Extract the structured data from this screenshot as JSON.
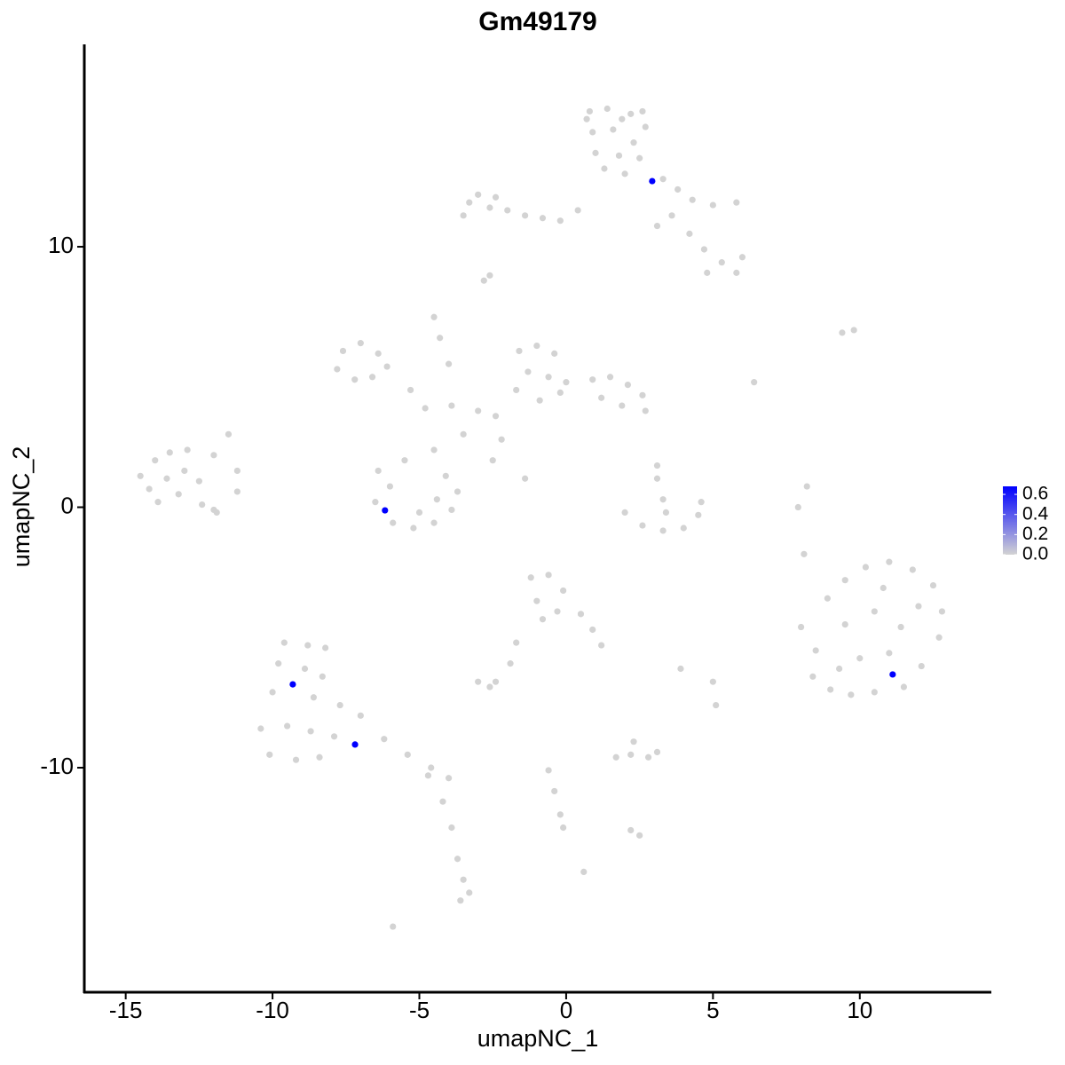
{
  "chart_data": {
    "type": "scatter",
    "title": "Gm49179",
    "x_label": "umapNC_1",
    "y_label": "umapNC_2",
    "xlim": [
      -16.41,
      14.48
    ],
    "ylim": [
      -18.62,
      17.77
    ],
    "xticks": [
      -15,
      -10,
      -5,
      0,
      5,
      10
    ],
    "yticks": [
      -10,
      0,
      10
    ],
    "colors": [
      "#d3d3d3",
      "#0000ff"
    ],
    "colorlim": [
      0,
      0.68
    ],
    "colorticks": [
      {
        "value": 0,
        "label": "0.0"
      },
      0.2,
      0.4,
      0.6
    ],
    "x": [
      0.8,
      1.4,
      2.2,
      2.7,
      0.9,
      1.6,
      2.3,
      1.0,
      1.8,
      2.5,
      1.3,
      2.0,
      0.7,
      2.6,
      1.9,
      -3.3,
      -3.0,
      -2.6,
      -2.0,
      -1.4,
      -0.8,
      -0.2,
      0.4,
      -3.5,
      -2.4,
      3.3,
      3.8,
      4.3,
      5.0,
      5.8,
      3.6,
      4.2,
      4.7,
      5.3,
      5.8,
      4.8,
      6.0,
      3.1,
      -1.6,
      -1.0,
      -0.4,
      -1.3,
      -0.6,
      0.0,
      -1.7,
      -0.9,
      -0.2,
      0.9,
      1.5,
      2.1,
      2.6,
      1.2,
      1.9,
      2.7,
      -7.6,
      -7.0,
      -6.4,
      -7.8,
      -7.2,
      -6.6,
      -6.1,
      -4.5,
      -4.3,
      -4.0,
      -5.3,
      -4.8,
      -3.9,
      -3.0,
      -2.4,
      -2.2,
      -3.5,
      -2.5,
      -1.4,
      -4.5,
      -14.5,
      -14.0,
      -13.5,
      -12.9,
      -14.2,
      -13.6,
      -13.0,
      -12.5,
      -13.9,
      -13.2,
      -12.4,
      -12.0,
      -11.5,
      -11.2,
      -12.0,
      -6.4,
      -6.0,
      -6.5,
      -5.9,
      -5.2,
      -4.5,
      -3.9,
      -3.7,
      -4.1,
      -5.0,
      -4.4,
      -5.5,
      2.0,
      2.6,
      3.3,
      4.0,
      4.5,
      4.6,
      3.1,
      3.3,
      3.4,
      8.0,
      8.5,
      8.4,
      9.0,
      9.7,
      10.5,
      11.5,
      12.1,
      12.7,
      12.8,
      12.5,
      11.8,
      11.0,
      10.2,
      9.5,
      8.9,
      9.5,
      10.5,
      11.4,
      10.0,
      11.0,
      9.3,
      12.0,
      10.8,
      -1.2,
      -0.6,
      -0.1,
      -1.0,
      -0.3,
      0.5,
      0.9,
      1.2,
      -0.8,
      -1.7,
      -1.9,
      -9.6,
      -8.8,
      -8.2,
      -9.8,
      -8.9,
      -8.3,
      -10.0,
      -8.6,
      -7.7,
      -10.4,
      -9.5,
      -8.7,
      -7.9,
      -10.1,
      -9.2,
      -8.4,
      -7.0,
      -6.2,
      -5.4,
      -4.6,
      -4.0,
      -4.7,
      -4.2,
      -3.9,
      -3.7,
      -3.5,
      -3.6,
      -3.3,
      -3.0,
      -2.6,
      -2.4,
      1.7,
      2.2,
      2.8,
      3.1,
      2.3,
      -0.6,
      -0.4,
      -0.2,
      -0.1,
      2.2,
      2.5,
      -5.9,
      0.6,
      9.4,
      9.8,
      7.9,
      8.2,
      8.1,
      -2.8,
      -2.6,
      6.4,
      3.1,
      5.0,
      5.1,
      3.9,
      -11.2,
      -11.9,
      2.93,
      -6.17,
      -9.31,
      -7.19,
      11.12
    ],
    "y": [
      15.2,
      15.3,
      15.1,
      14.6,
      14.4,
      14.5,
      14.0,
      13.6,
      13.5,
      13.4,
      13.0,
      12.8,
      14.9,
      15.2,
      14.9,
      11.7,
      12.0,
      11.5,
      11.4,
      11.2,
      11.1,
      11.0,
      11.4,
      11.2,
      11.9,
      12.6,
      12.2,
      11.8,
      11.6,
      11.7,
      11.2,
      10.5,
      9.9,
      9.4,
      9.0,
      9.0,
      9.6,
      10.8,
      6.0,
      6.2,
      5.9,
      5.2,
      5.0,
      4.8,
      4.5,
      4.1,
      4.4,
      4.9,
      5.0,
      4.7,
      4.3,
      4.2,
      3.9,
      3.7,
      6.0,
      6.3,
      5.9,
      5.3,
      4.9,
      5.0,
      5.4,
      7.3,
      6.5,
      5.5,
      4.5,
      3.8,
      3.9,
      3.7,
      3.5,
      2.6,
      2.8,
      1.8,
      1.1,
      2.2,
      1.2,
      1.8,
      2.1,
      2.2,
      0.7,
      1.1,
      1.4,
      1.0,
      0.2,
      0.5,
      0.1,
      -0.1,
      2.8,
      1.4,
      2.0,
      1.4,
      0.8,
      0.2,
      -0.6,
      -0.8,
      -0.6,
      -0.1,
      0.6,
      1.2,
      -0.2,
      0.3,
      1.8,
      -0.2,
      -0.7,
      -0.9,
      -0.8,
      -0.3,
      0.2,
      1.1,
      0.3,
      -0.2,
      -4.6,
      -5.5,
      -6.5,
      -7.0,
      -7.2,
      -7.1,
      -6.9,
      -6.1,
      -5.0,
      -4.0,
      -3.0,
      -2.4,
      -2.1,
      -2.3,
      -2.8,
      -3.5,
      -4.5,
      -4.0,
      -4.6,
      -5.8,
      -5.6,
      -6.2,
      -3.8,
      -3.1,
      -2.7,
      -2.6,
      -3.2,
      -3.6,
      -4.0,
      -4.1,
      -4.7,
      -5.3,
      -4.3,
      -5.2,
      -6.0,
      -5.2,
      -5.3,
      -5.4,
      -6.0,
      -6.2,
      -6.5,
      -7.1,
      -7.3,
      -7.6,
      -8.5,
      -8.4,
      -8.6,
      -8.8,
      -9.5,
      -9.7,
      -9.6,
      -8.0,
      -8.9,
      -9.5,
      -10.0,
      -10.4,
      -10.3,
      -11.3,
      -12.3,
      -13.5,
      -14.3,
      -15.1,
      -14.8,
      -6.7,
      -6.9,
      -6.7,
      -9.6,
      -9.5,
      -9.6,
      -9.4,
      -9.0,
      -10.1,
      -10.9,
      -11.8,
      -12.3,
      -12.4,
      -12.6,
      -16.1,
      -14.0,
      6.7,
      6.8,
      0.0,
      0.8,
      -1.8,
      8.7,
      8.9,
      4.8,
      1.6,
      -6.7,
      -7.6,
      -6.2,
      0.6,
      -0.2,
      12.52,
      -0.12,
      -6.8,
      -9.11,
      -6.42
    ],
    "values": [
      0,
      0,
      0,
      0,
      0,
      0,
      0,
      0,
      0,
      0,
      0,
      0,
      0,
      0,
      0,
      0,
      0,
      0,
      0,
      0,
      0,
      0,
      0,
      0,
      0,
      0,
      0,
      0,
      0,
      0,
      0,
      0,
      0,
      0,
      0,
      0,
      0,
      0,
      0,
      0,
      0,
      0,
      0,
      0,
      0,
      0,
      0,
      0,
      0,
      0,
      0,
      0,
      0,
      0,
      0,
      0,
      0,
      0,
      0,
      0,
      0,
      0,
      0,
      0,
      0,
      0,
      0,
      0,
      0,
      0,
      0,
      0,
      0,
      0,
      0,
      0,
      0,
      0,
      0,
      0,
      0,
      0,
      0,
      0,
      0,
      0,
      0,
      0,
      0,
      0,
      0,
      0,
      0,
      0,
      0,
      0,
      0,
      0,
      0,
      0,
      0,
      0,
      0,
      0,
      0,
      0,
      0,
      0,
      0,
      0,
      0,
      0,
      0,
      0,
      0,
      0,
      0,
      0,
      0,
      0,
      0,
      0,
      0,
      0,
      0,
      0,
      0,
      0,
      0,
      0,
      0,
      0,
      0,
      0,
      0,
      0,
      0,
      0,
      0,
      0,
      0,
      0,
      0,
      0,
      0,
      0,
      0,
      0,
      0,
      0,
      0,
      0,
      0,
      0,
      0,
      0,
      0,
      0,
      0,
      0,
      0,
      0,
      0,
      0,
      0,
      0,
      0,
      0,
      0,
      0,
      0,
      0,
      0,
      0,
      0,
      0,
      0,
      0,
      0,
      0,
      0,
      0,
      0,
      0,
      0,
      0,
      0,
      0,
      0,
      0,
      0,
      0,
      0,
      0,
      0,
      0,
      0,
      0,
      0,
      0,
      0,
      0,
      0,
      0.68,
      0.68,
      0.68,
      0.68,
      0.68
    ]
  }
}
